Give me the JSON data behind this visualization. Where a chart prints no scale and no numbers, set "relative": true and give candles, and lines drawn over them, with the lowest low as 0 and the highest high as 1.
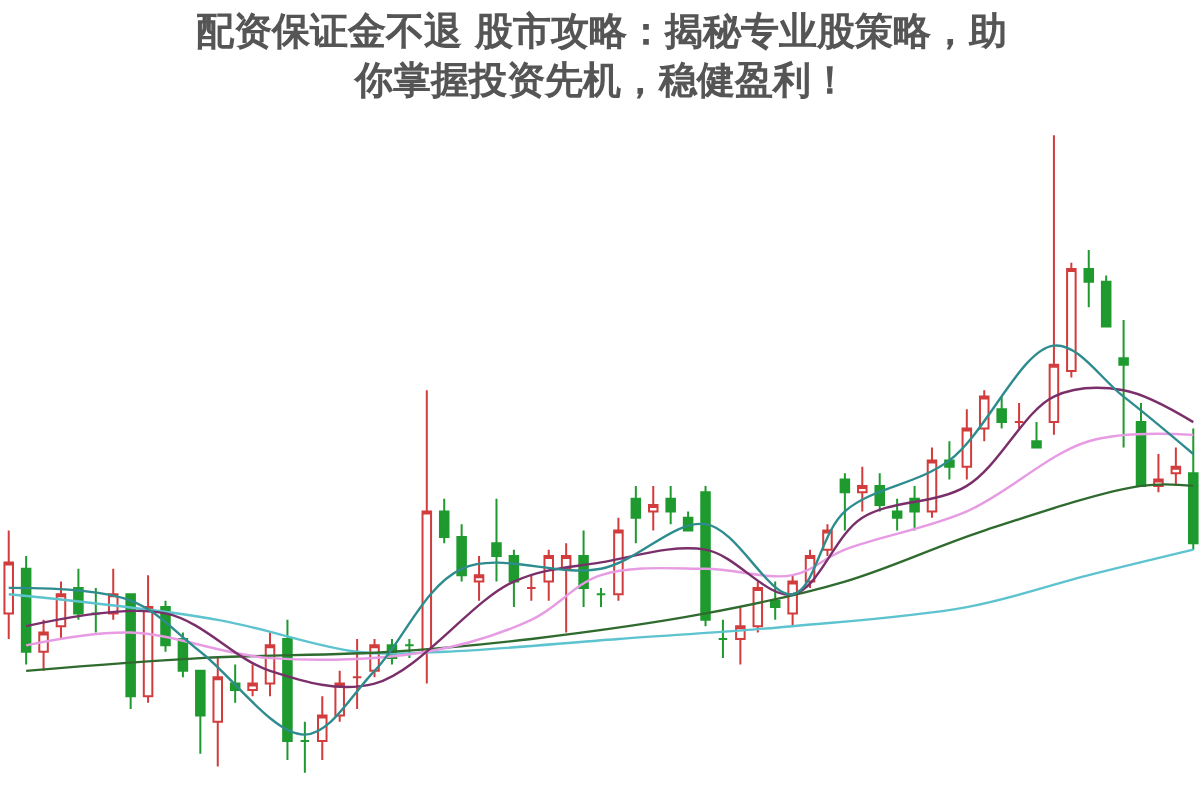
{
  "chart_data": {
    "type": "candlestick",
    "relative": true,
    "title": "配资保证金不退 股市攻略：揭秘专业股策略，助你掌握投资先机，稳健盈利！",
    "colors": [
      "#d23c3c",
      "#1e9a2e",
      "#d23c3c",
      "#d23c3c",
      "#1e9a2e",
      "#1e9a2e",
      "#d23c3c",
      "#1e9a2e",
      "#d23c3c",
      "#1e9a2e",
      "#1e9a2e",
      "#1e9a2e",
      "#d23c3c",
      "#1e9a2e",
      "#d23c3c",
      "#d23c3c",
      "#1e9a2e",
      "#1e9a2e",
      "#d23c3c",
      "#d23c3c",
      "#d23c3c",
      "#d23c3c",
      "#1e9a2e",
      "#1e9a2e",
      "#d23c3c",
      "#1e9a2e",
      "#1e9a2e",
      "#d23c3c",
      "#1e9a2e",
      "#1e9a2e",
      "#d23c3c",
      "#d23c3c",
      "#d23c3c",
      "#1e9a2e",
      "#1e9a2e",
      "#d23c3c",
      "#1e9a2e",
      "#d23c3c",
      "#1e9a2e",
      "#1e9a2e",
      "#1e9a2e",
      "#1e9a2e",
      "#d23c3c",
      "#d23c3c",
      "#1e9a2e",
      "#d23c3c",
      "#d23c3c",
      "#d23c3c",
      "#1e9a2e",
      "#d23c3c",
      "#1e9a2e",
      "#1e9a2e",
      "#1e9a2e",
      "#d23c3c",
      "#1e9a2e",
      "#d23c3c",
      "#d23c3c",
      "#1e9a2e",
      "#d23c3c",
      "#1e9a2e",
      "#d23c3c",
      "#d23c3c",
      "#1e9a2e",
      "#1e9a2e",
      "#1e9a2e",
      "#1e9a2e",
      "#d23c3c",
      "#d23c3c",
      "#1e9a2e"
    ],
    "categories": [
      null,
      null,
      null,
      null,
      null,
      null,
      null,
      null,
      null,
      null,
      null,
      null,
      null,
      null,
      null,
      null,
      null,
      null,
      null,
      null,
      null,
      null,
      null,
      null,
      null,
      null,
      null,
      null,
      null,
      null,
      null,
      null,
      null,
      null,
      null,
      null,
      null,
      null,
      null,
      null,
      null,
      null,
      null,
      null,
      null,
      null,
      null,
      null,
      null,
      null,
      null,
      null,
      null,
      null,
      null,
      null,
      null,
      null,
      null,
      null,
      null,
      null,
      null,
      null,
      null,
      null,
      null,
      null,
      null
    ],
    "ohlc": [
      [
        0.25,
        0.38,
        0.21,
        0.33
      ],
      [
        0.32,
        0.34,
        0.17,
        0.19
      ],
      [
        0.19,
        0.24,
        0.16,
        0.22
      ],
      [
        0.23,
        0.3,
        0.21,
        0.28
      ],
      [
        0.29,
        0.32,
        0.24,
        0.25
      ],
      [
        0.25,
        0.29,
        0.22,
        0.25
      ],
      [
        0.25,
        0.32,
        0.24,
        0.28
      ],
      [
        0.28,
        0.28,
        0.1,
        0.12
      ],
      [
        0.12,
        0.31,
        0.11,
        0.26
      ],
      [
        0.26,
        0.27,
        0.19,
        0.2
      ],
      [
        0.21,
        0.22,
        0.15,
        0.16
      ],
      [
        0.16,
        0.16,
        0.03,
        0.09
      ],
      [
        0.08,
        0.18,
        0.01,
        0.15
      ],
      [
        0.14,
        0.17,
        0.11,
        0.13
      ],
      [
        0.13,
        0.17,
        0.12,
        0.14
      ],
      [
        0.14,
        0.22,
        0.12,
        0.2
      ],
      [
        0.21,
        0.24,
        0.02,
        0.05
      ],
      [
        0.05,
        0.08,
        0.0,
        0.05
      ],
      [
        0.05,
        0.12,
        0.02,
        0.09
      ],
      [
        0.09,
        0.16,
        0.08,
        0.14
      ],
      [
        0.15,
        0.21,
        0.1,
        0.15
      ],
      [
        0.16,
        0.21,
        0.15,
        0.2
      ],
      [
        0.2,
        0.21,
        0.17,
        0.18
      ],
      [
        0.2,
        0.21,
        0.18,
        0.2
      ],
      [
        0.19,
        0.6,
        0.14,
        0.41
      ],
      [
        0.41,
        0.43,
        0.36,
        0.37
      ],
      [
        0.37,
        0.39,
        0.3,
        0.31
      ],
      [
        0.3,
        0.34,
        0.27,
        0.31
      ],
      [
        0.36,
        0.43,
        0.3,
        0.34
      ],
      [
        0.34,
        0.35,
        0.26,
        0.3
      ],
      [
        0.29,
        0.31,
        0.27,
        0.29
      ],
      [
        0.3,
        0.35,
        0.27,
        0.34
      ],
      [
        0.32,
        0.36,
        0.22,
        0.34
      ],
      [
        0.34,
        0.38,
        0.26,
        0.29
      ],
      [
        0.28,
        0.29,
        0.26,
        0.28
      ],
      [
        0.28,
        0.4,
        0.27,
        0.38
      ],
      [
        0.43,
        0.45,
        0.36,
        0.4
      ],
      [
        0.41,
        0.45,
        0.38,
        0.42
      ],
      [
        0.43,
        0.45,
        0.39,
        0.41
      ],
      [
        0.4,
        0.41,
        0.38,
        0.38
      ],
      [
        0.44,
        0.45,
        0.23,
        0.24
      ],
      [
        0.21,
        0.24,
        0.18,
        0.21
      ],
      [
        0.21,
        0.26,
        0.17,
        0.23
      ],
      [
        0.23,
        0.3,
        0.22,
        0.29
      ],
      [
        0.27,
        0.3,
        0.24,
        0.26
      ],
      [
        0.25,
        0.31,
        0.23,
        0.3
      ],
      [
        0.3,
        0.35,
        0.29,
        0.34
      ],
      [
        0.35,
        0.39,
        0.34,
        0.38
      ],
      [
        0.46,
        0.47,
        0.38,
        0.44
      ],
      [
        0.44,
        0.48,
        0.41,
        0.45
      ],
      [
        0.45,
        0.47,
        0.41,
        0.42
      ],
      [
        0.41,
        0.43,
        0.38,
        0.4
      ],
      [
        0.43,
        0.45,
        0.38,
        0.41
      ],
      [
        0.41,
        0.51,
        0.4,
        0.49
      ],
      [
        0.49,
        0.52,
        0.46,
        0.48
      ],
      [
        0.48,
        0.57,
        0.46,
        0.54
      ],
      [
        0.54,
        0.6,
        0.52,
        0.59
      ],
      [
        0.57,
        0.59,
        0.54,
        0.55
      ],
      [
        0.55,
        0.58,
        0.54,
        0.55
      ],
      [
        0.52,
        0.55,
        0.51,
        0.51
      ],
      [
        0.55,
        1.0,
        0.53,
        0.64
      ],
      [
        0.63,
        0.8,
        0.62,
        0.79
      ],
      [
        0.79,
        0.82,
        0.73,
        0.77
      ],
      [
        0.77,
        0.78,
        0.7,
        0.7
      ],
      [
        0.65,
        0.71,
        0.51,
        0.64
      ],
      [
        0.55,
        0.58,
        0.45,
        0.45
      ],
      [
        0.45,
        0.5,
        0.44,
        0.46
      ],
      [
        0.47,
        0.51,
        0.45,
        0.48
      ],
      [
        0.47,
        0.54,
        0.35,
        0.36
      ]
    ],
    "series": [
      {
        "type": "line",
        "color": "#5cc3cf",
        "values": [
          0.28,
          null,
          null,
          null,
          null,
          null,
          null,
          null,
          null,
          null,
          null,
          null,
          0.24,
          null,
          null,
          null,
          null,
          null,
          null,
          null,
          0.19,
          null,
          null,
          null,
          null,
          0.19,
          null,
          null,
          null,
          null,
          null,
          null,
          null,
          null,
          null,
          0.21,
          null,
          null,
          null,
          null,
          null,
          null,
          null,
          null,
          null,
          0.23,
          null,
          null,
          null,
          null,
          null,
          null,
          null,
          null,
          null,
          0.26,
          null,
          null,
          null,
          null,
          null,
          null,
          0.31,
          null,
          null,
          null,
          null,
          null,
          0.35
        ]
      },
      {
        "type": "line",
        "color": "#2f6b2f",
        "values": [
          null,
          0.16,
          null,
          null,
          null,
          null,
          null,
          null,
          null,
          null,
          null,
          0.18,
          null,
          null,
          null,
          null,
          null,
          null,
          null,
          null,
          null,
          null,
          0.19,
          null,
          null,
          null,
          null,
          null,
          null,
          null,
          0.21,
          null,
          null,
          null,
          null,
          null,
          null,
          null,
          null,
          null,
          0.25,
          null,
          null,
          null,
          null,
          null,
          null,
          null,
          0.3,
          null,
          null,
          null,
          null,
          null,
          null,
          null,
          0.38,
          null,
          null,
          null,
          null,
          null,
          null,
          null,
          null,
          0.45,
          null,
          null,
          0.45
        ]
      },
      {
        "type": "line",
        "color": "#e79be3",
        "values": [
          null,
          0.2,
          null,
          null,
          null,
          null,
          null,
          0.22,
          null,
          null,
          null,
          null,
          null,
          null,
          null,
          0.18,
          null,
          null,
          null,
          null,
          null,
          null,
          null,
          null,
          0.19,
          null,
          null,
          null,
          null,
          null,
          0.24,
          null,
          null,
          null,
          0.31,
          null,
          null,
          null,
          null,
          null,
          0.32,
          null,
          null,
          null,
          null,
          0.31,
          null,
          null,
          0.35,
          null,
          null,
          null,
          null,
          null,
          null,
          0.41,
          null,
          null,
          null,
          null,
          null,
          null,
          0.52,
          null,
          null,
          null,
          null,
          null,
          0.53
        ]
      },
      {
        "type": "line",
        "color": "#7a2f6a",
        "values": [
          null,
          0.23,
          null,
          null,
          null,
          null,
          null,
          null,
          null,
          0.25,
          null,
          null,
          null,
          null,
          null,
          0.16,
          null,
          null,
          null,
          null,
          null,
          0.14,
          null,
          null,
          null,
          null,
          null,
          null,
          null,
          0.3,
          null,
          null,
          null,
          null,
          0.33,
          null,
          null,
          null,
          null,
          null,
          0.35,
          null,
          null,
          null,
          null,
          0.28,
          null,
          null,
          null,
          0.4,
          null,
          null,
          null,
          null,
          null,
          0.45,
          null,
          null,
          null,
          null,
          0.59,
          null,
          null,
          null,
          0.6,
          null,
          null,
          null,
          0.55
        ]
      },
      {
        "type": "line",
        "color": "#2e8c8e",
        "values": [
          0.29,
          null,
          null,
          null,
          null,
          null,
          null,
          0.27,
          null,
          null,
          null,
          0.19,
          null,
          null,
          null,
          null,
          null,
          0.06,
          null,
          null,
          null,
          0.16,
          null,
          null,
          null,
          null,
          0.32,
          null,
          null,
          null,
          null,
          null,
          null,
          null,
          0.32,
          null,
          null,
          null,
          null,
          null,
          0.39,
          null,
          null,
          null,
          null,
          0.28,
          null,
          null,
          0.41,
          null,
          null,
          null,
          null,
          null,
          0.49,
          null,
          null,
          null,
          null,
          null,
          0.67,
          null,
          null,
          null,
          0.59,
          null,
          null,
          null,
          0.5
        ]
      }
    ]
  }
}
